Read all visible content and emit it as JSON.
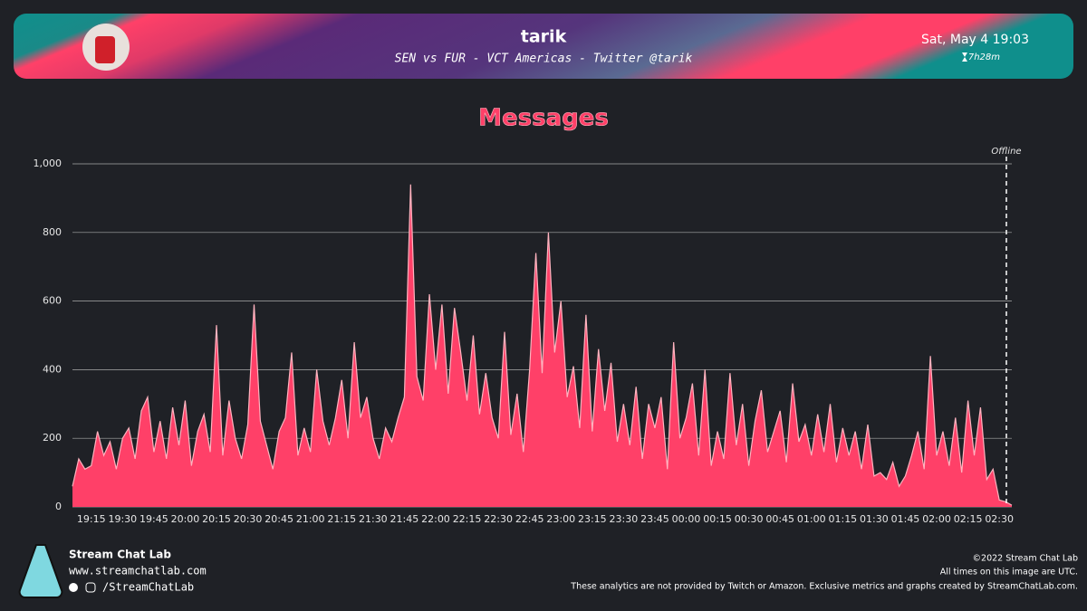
{
  "header": {
    "channel": "tarik",
    "stream_title": "SEN vs FUR - VCT Americas - Twitter @tarik",
    "date": "Sat, May 4 19:03",
    "duration": "7h28m"
  },
  "chart_data": {
    "type": "area",
    "title": "Messages",
    "annotation": "Offline",
    "color": "#ff4068",
    "line_color": "#ffb3bf",
    "grid": true,
    "ylim": [
      0,
      1000
    ],
    "yticks": [
      0,
      200,
      400,
      600,
      800,
      {
        "value": 1000,
        "label": "1,000"
      }
    ],
    "categories": [
      null,
      null,
      null,
      "19:15",
      null,
      null,
      null,
      null,
      "19:30",
      null,
      null,
      null,
      null,
      "19:45",
      null,
      null,
      null,
      null,
      "20:00",
      null,
      null,
      null,
      null,
      "20:15",
      null,
      null,
      null,
      null,
      "20:30",
      null,
      null,
      null,
      null,
      "20:45",
      null,
      null,
      null,
      null,
      "21:00",
      null,
      null,
      null,
      null,
      "21:15",
      null,
      null,
      null,
      null,
      "21:30",
      null,
      null,
      null,
      null,
      "21:45",
      null,
      null,
      null,
      null,
      "22:00",
      null,
      null,
      null,
      null,
      "22:15",
      null,
      null,
      null,
      null,
      "22:30",
      null,
      null,
      null,
      null,
      "22:45",
      null,
      null,
      null,
      null,
      "23:00",
      null,
      null,
      null,
      null,
      "23:15",
      null,
      null,
      null,
      null,
      "23:30",
      null,
      null,
      null,
      null,
      "23:45",
      null,
      null,
      null,
      null,
      "00:00",
      null,
      null,
      null,
      null,
      "00:15",
      null,
      null,
      null,
      null,
      "00:30",
      null,
      null,
      null,
      null,
      "00:45",
      null,
      null,
      null,
      null,
      "01:00",
      null,
      null,
      null,
      null,
      "01:15",
      null,
      null,
      null,
      null,
      "01:30",
      null,
      null,
      null,
      null,
      "01:45",
      null,
      null,
      null,
      null,
      "02:00",
      null,
      null,
      null,
      null,
      "02:15",
      null,
      null,
      null,
      null,
      "02:30",
      null,
      null
    ],
    "values": [
      60,
      140,
      110,
      120,
      220,
      150,
      190,
      110,
      200,
      230,
      140,
      280,
      320,
      160,
      250,
      140,
      290,
      180,
      310,
      120,
      220,
      270,
      160,
      530,
      150,
      310,
      200,
      140,
      240,
      590,
      250,
      180,
      110,
      220,
      260,
      450,
      150,
      230,
      160,
      400,
      250,
      180,
      260,
      370,
      200,
      480,
      260,
      320,
      200,
      140,
      230,
      190,
      260,
      320,
      940,
      380,
      310,
      620,
      400,
      590,
      330,
      580,
      450,
      310,
      500,
      270,
      390,
      260,
      200,
      510,
      210,
      330,
      160,
      400,
      740,
      390,
      800,
      450,
      600,
      320,
      410,
      230,
      560,
      220,
      460,
      280,
      420,
      190,
      300,
      180,
      350,
      140,
      300,
      230,
      320,
      110,
      480,
      200,
      260,
      360,
      150,
      400,
      120,
      220,
      140,
      390,
      180,
      300,
      120,
      250,
      340,
      160,
      220,
      280,
      130,
      360,
      190,
      240,
      150,
      270,
      160,
      300,
      130,
      230,
      150,
      220,
      110,
      240,
      90,
      100,
      80,
      130,
      60,
      90,
      150,
      220,
      110,
      440,
      150,
      220,
      120,
      260,
      100,
      310,
      150,
      290,
      80,
      110,
      20,
      15,
      5
    ]
  },
  "footer": {
    "brand": "Stream Chat Lab",
    "url": "www.streamchatlab.com",
    "handle": "/StreamChatLab",
    "copyright": "©2022 Stream Chat Lab",
    "timezone_note": "All times on this image are UTC.",
    "disclaimer": "These analytics are not provided by Twitch or Amazon. Exclusive metrics and graphs created by StreamChatLab.com."
  }
}
